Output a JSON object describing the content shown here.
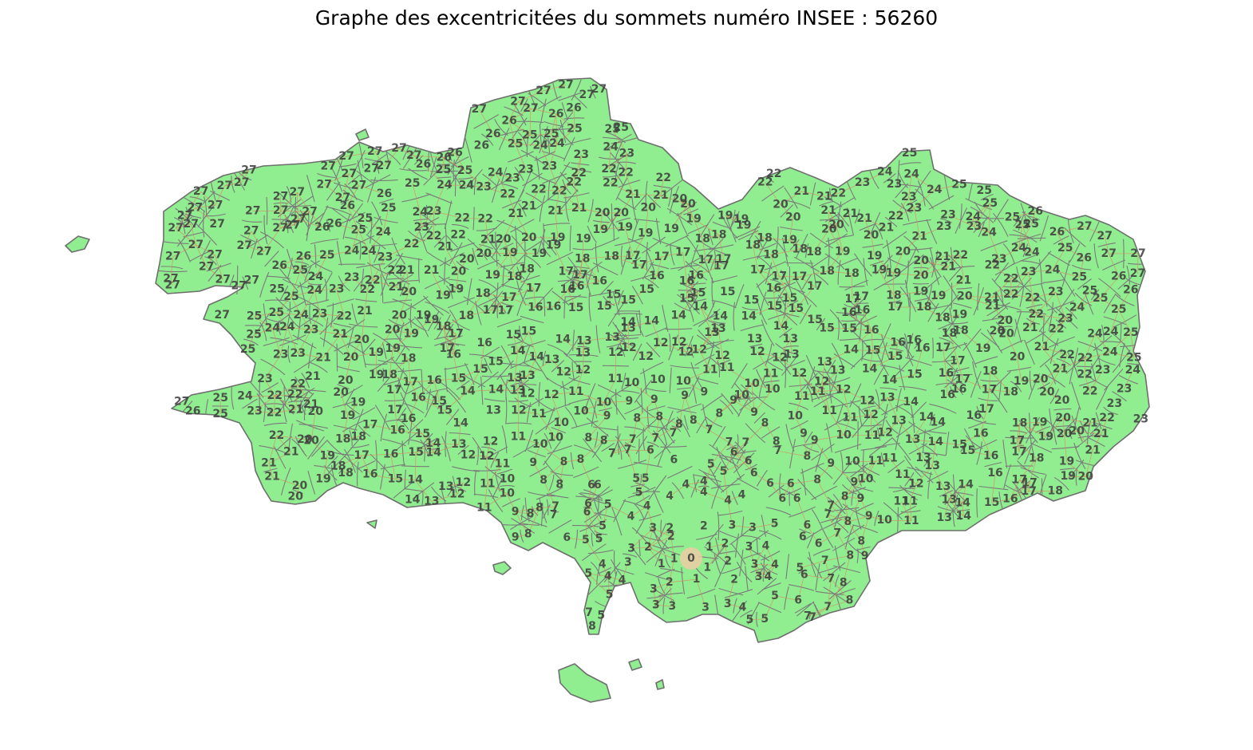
{
  "title": "Graphe des excentricitées du sommets numéro INSEE : 56260",
  "colors": {
    "land": "#90ee90",
    "commune_border": "#6e6e6e",
    "edge": "#d98a5e",
    "label": "#3f3f3f",
    "source_highlight": "#f4c9a8"
  },
  "source_vertex": {
    "insee": "56260",
    "eccentricity": 0
  },
  "eccentricity_range": [
    0,
    27
  ],
  "sample_labels": {
    "west_tip": [
      "27",
      "26",
      "25",
      "24",
      "23"
    ],
    "north_coast": [
      "22",
      "21",
      "20",
      "19",
      "18"
    ],
    "east_edge": [
      "22",
      "21",
      "20",
      "19"
    ],
    "center_south": [
      "0",
      "1",
      "2",
      "3",
      "4",
      "5"
    ]
  }
}
